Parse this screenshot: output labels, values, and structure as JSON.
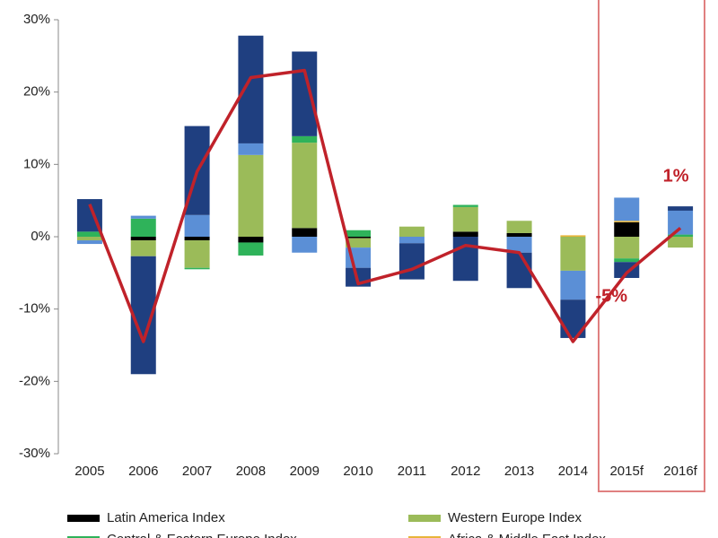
{
  "chart_data": {
    "type": "bar",
    "stacked": true,
    "categories": [
      "2005",
      "2006",
      "2007",
      "2008",
      "2009",
      "2010",
      "2011",
      "2012",
      "2013",
      "2014",
      "2015f",
      "2016f"
    ],
    "series": [
      {
        "name": "Latin America Index",
        "color": "#000000",
        "values": [
          0,
          -0.5,
          -0.5,
          -0.8,
          1.2,
          -0.2,
          0,
          0.7,
          0.5,
          0,
          2,
          0
        ]
      },
      {
        "name": "Western Europe Index",
        "color": "#9bbb59",
        "values": [
          -0.5,
          -2.2,
          -3.8,
          11.3,
          11.8,
          -1.3,
          1.4,
          3.4,
          1.7,
          -4.7,
          -3,
          -1.5
        ]
      },
      {
        "name": "Central & Eastern Europe Index",
        "color": "#2fb35a",
        "values": [
          0.7,
          2.5,
          -0.2,
          -1.8,
          0.9,
          0.9,
          0,
          0.3,
          0,
          0,
          -0.5,
          0.3
        ]
      },
      {
        "name": "Africa & Middle East Index",
        "color": "#e8b53a",
        "values": [
          0,
          0,
          0,
          0,
          0,
          0,
          0,
          0,
          0,
          0.2,
          0.2,
          0
        ]
      },
      {
        "color": "#5b8fd6",
        "values": [
          -0.5,
          0.4,
          3,
          1.6,
          -2.2,
          -2.8,
          -0.9,
          0,
          -2.2,
          -4,
          3.2,
          3.3
        ]
      },
      {
        "color": "#1f3f80",
        "values": [
          4.5,
          -16.3,
          12.3,
          14.9,
          11.7,
          -2.6,
          -5,
          -6.1,
          -4.9,
          -5.3,
          -2.2,
          0.6
        ]
      },
      {
        "type": "line",
        "color": "#c0222a",
        "values": [
          4.5,
          -14.5,
          9,
          22,
          23,
          -6.5,
          -4.5,
          -1.2,
          -2.2,
          -14.5,
          -5,
          1.2
        ]
      }
    ],
    "annotations": [
      {
        "text": "1%",
        "index": 11,
        "value": 1.2
      },
      {
        "text": "-5%",
        "index": 10,
        "value": -5
      }
    ],
    "ylim": [
      -30,
      30
    ],
    "yticks": [
      {
        "value": -30,
        "label": "-30%"
      },
      {
        "value": -20,
        "label": "-20%"
      },
      {
        "value": -10,
        "label": "-10%"
      },
      {
        "value": 0,
        "label": "0%"
      },
      {
        "value": 10,
        "label": "10%"
      },
      {
        "value": 20,
        "label": "20%"
      },
      {
        "value": 30,
        "label": "30%"
      }
    ],
    "grid": false
  }
}
